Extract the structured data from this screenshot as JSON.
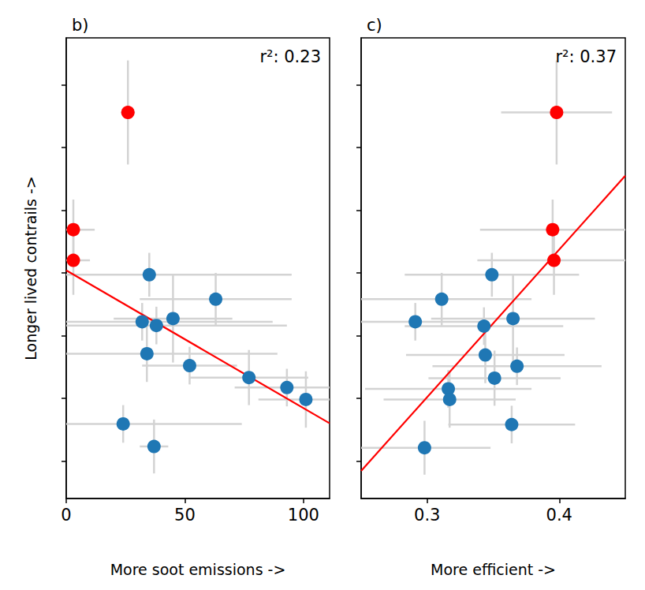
{
  "chart_data": [
    {
      "type": "scatter",
      "title": "b)",
      "annotation": "r²: 0.23",
      "x_label": "More soot emissions ->",
      "y_label": "Longer lived contrails ->",
      "xlim": [
        0,
        111
      ],
      "xticks": [
        0,
        50,
        100
      ],
      "ylim": [
        0.4,
        7.75
      ],
      "yticks": [
        1,
        2,
        3,
        4,
        5,
        6,
        7
      ],
      "tick_labels": "x",
      "grid": false,
      "marker": "circle",
      "x": [
        26,
        3,
        3,
        35,
        63,
        32,
        38,
        45,
        34,
        52,
        77,
        93,
        101,
        24,
        37
      ],
      "values": [
        6.56,
        4.69,
        4.2,
        3.97,
        3.58,
        3.22,
        3.16,
        3.27,
        2.71,
        2.52,
        2.33,
        2.17,
        1.98,
        1.59,
        1.23
      ],
      "x_error": [
        3,
        9,
        7,
        60,
        32,
        55,
        55,
        25,
        55,
        20,
        25,
        22,
        20,
        50,
        6
      ],
      "y_error": [
        0.83,
        0.48,
        0.55,
        0.35,
        0.42,
        0.3,
        0.3,
        0.7,
        0.45,
        0.3,
        0.44,
        0.3,
        0.45,
        0.3,
        0.43
      ],
      "colors": [
        "#ff0000",
        "#ff0000",
        "#ff0000",
        "#1f77b4",
        "#1f77b4",
        "#1f77b4",
        "#1f77b4",
        "#1f77b4",
        "#1f77b4",
        "#1f77b4",
        "#1f77b4",
        "#1f77b4",
        "#1f77b4",
        "#1f77b4",
        "#1f77b4"
      ],
      "error_color": "#d3d3d3",
      "fit": {
        "x": [
          0,
          111
        ],
        "values": [
          4.04,
          1.6
        ],
        "color": "#ff0000",
        "line_style": "solid"
      }
    },
    {
      "type": "scatter",
      "title": "c)",
      "annotation": "r²: 0.37",
      "x_label": "More efficient ->",
      "xlim": [
        0.25,
        0.45
      ],
      "xticks": [
        0.3,
        0.4
      ],
      "ylim": [
        0.4,
        7.75
      ],
      "yticks": [
        1,
        2,
        3,
        4,
        5,
        6,
        7
      ],
      "tick_labels": "x",
      "grid": false,
      "marker": "circle",
      "x": [
        0.398,
        0.395,
        0.396,
        0.349,
        0.311,
        0.291,
        0.343,
        0.365,
        0.344,
        0.368,
        0.351,
        0.316,
        0.317,
        0.364,
        0.298
      ],
      "values": [
        6.56,
        4.69,
        4.2,
        3.97,
        3.58,
        3.22,
        3.15,
        3.27,
        2.69,
        2.51,
        2.32,
        2.15,
        1.98,
        1.58,
        1.21
      ],
      "x_error": [
        0.042,
        0.055,
        0.058,
        0.066,
        0.068,
        0.05,
        0.06,
        0.062,
        0.06,
        0.064,
        0.05,
        0.063,
        0.05,
        0.048,
        0.05
      ],
      "y_error": [
        0.83,
        0.48,
        0.55,
        0.35,
        0.42,
        0.3,
        0.3,
        0.7,
        0.45,
        0.3,
        0.44,
        0.3,
        0.45,
        0.3,
        0.43
      ],
      "colors": [
        "#ff0000",
        "#ff0000",
        "#ff0000",
        "#1f77b4",
        "#1f77b4",
        "#1f77b4",
        "#1f77b4",
        "#1f77b4",
        "#1f77b4",
        "#1f77b4",
        "#1f77b4",
        "#1f77b4",
        "#1f77b4",
        "#1f77b4",
        "#1f77b4"
      ],
      "error_color": "#d3d3d3",
      "fit": {
        "x": [
          0.25,
          0.45
        ],
        "values": [
          0.84,
          5.55
        ],
        "color": "#ff0000",
        "line_style": "solid"
      }
    }
  ]
}
